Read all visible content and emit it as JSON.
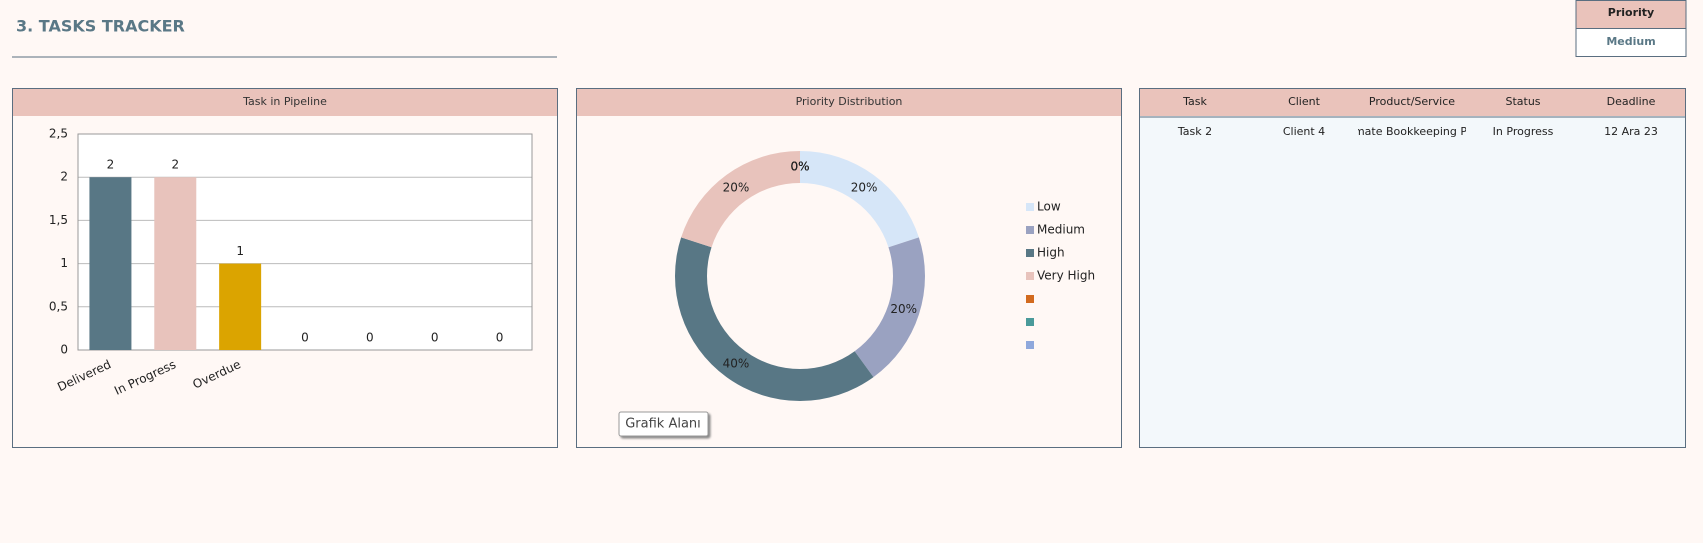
{
  "header": {
    "title": "3. TASKS TRACKER"
  },
  "filter": {
    "label": "Priority",
    "value": "Medium"
  },
  "chart_data": [
    {
      "type": "bar",
      "title": "Task in Pipeline",
      "categories": [
        "Delivered",
        "In Progress",
        "Overdue",
        null,
        null,
        null,
        null
      ],
      "values": [
        2,
        2,
        1,
        0,
        0,
        0,
        0
      ],
      "colors": [
        "#587785",
        "#e8c3bc",
        "#dba400"
      ],
      "ylim": [
        0,
        2.5
      ],
      "yticks": [
        0,
        {
          "value": 0.5,
          "label": "0,5"
        },
        1,
        {
          "value": 1.5,
          "label": "1,5"
        },
        2,
        {
          "value": 2.5,
          "label": "2,5"
        }
      ],
      "grid": true
    },
    {
      "type": "donut",
      "title": "Priority Distribution",
      "categories": [
        "Low",
        "Medium",
        "High",
        "Very High",
        null,
        null,
        null
      ],
      "values": [
        20,
        20,
        40,
        20,
        0,
        0,
        0
      ],
      "value_labels": [
        "20%",
        "20%",
        "40%",
        "20%",
        "0%",
        "0%",
        "0%"
      ],
      "colors": [
        "#d6e6f8",
        "#9aa2c1",
        "#587785",
        "#e8c3bc",
        "#d26a1e",
        "#4a9a9a",
        "#8fa8dc"
      ],
      "tooltip": "Grafik Alanı"
    }
  ],
  "table": {
    "columns": [
      "Task",
      "Client",
      "Product/Service",
      "Status",
      "Deadline"
    ],
    "rows": [
      [
        "Task 2",
        "Client 4",
        "mate Bookkeeping Pl",
        "In Progress",
        "12 Ara 23"
      ]
    ]
  }
}
